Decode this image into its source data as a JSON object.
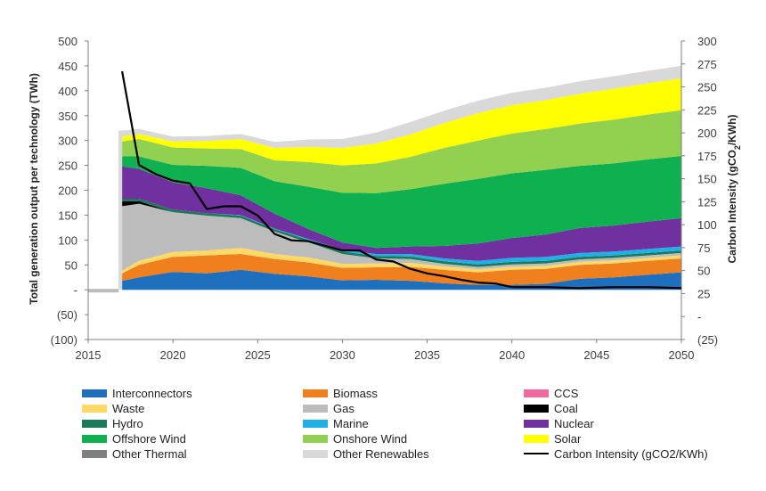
{
  "chart_data": {
    "type": "area",
    "title": "",
    "xlabel": "",
    "ylabel": "Total generation output per technology (TWh)",
    "y2label": "Carbon Intensity (gCO2/KWh)",
    "xlim": [
      2015,
      2050
    ],
    "ylim": [
      -100,
      500
    ],
    "y2lim": [
      -25,
      300
    ],
    "x_ticks": [
      "2015",
      "2020",
      "2025",
      "2030",
      "2035",
      "2040",
      "2045",
      "2050"
    ],
    "y_ticks": [
      "500",
      "450",
      "400",
      "350",
      "300",
      "250",
      "200",
      "150",
      "100",
      "50",
      "-",
      "(50)",
      "(100)"
    ],
    "y2_ticks": [
      "300",
      "275",
      "250",
      "225",
      "200",
      "175",
      "150",
      "125",
      "100",
      "75",
      "50",
      "25",
      "-",
      "(25)"
    ],
    "x": [
      2017,
      2018,
      2020,
      2022,
      2024,
      2026,
      2028,
      2030,
      2032,
      2034,
      2036,
      2038,
      2040,
      2042,
      2044,
      2046,
      2048,
      2050
    ],
    "series": [
      {
        "name": "Interconnectors",
        "color": "#1f6fbf",
        "values": [
          18,
          25,
          36,
          33,
          40,
          32,
          27,
          19,
          20,
          18,
          13,
          10,
          10,
          12,
          22,
          25,
          30,
          35
        ]
      },
      {
        "name": "Biomass",
        "color": "#f07f1e",
        "values": [
          15,
          25,
          30,
          36,
          32,
          30,
          28,
          25,
          25,
          28,
          27,
          25,
          30,
          30,
          28,
          28,
          28,
          28
        ]
      },
      {
        "name": "CCS",
        "color": "#f06aa0",
        "values": [
          0,
          0,
          0,
          0,
          0,
          0,
          0,
          0,
          0,
          0,
          0,
          0,
          0,
          0,
          0,
          0,
          0,
          0
        ]
      },
      {
        "name": "Waste",
        "color": "#ffd966",
        "values": [
          5,
          8,
          10,
          10,
          12,
          10,
          10,
          8,
          8,
          8,
          7,
          6,
          6,
          6,
          6,
          6,
          6,
          6
        ]
      },
      {
        "name": "Gas",
        "color": "#bcbcbc",
        "values": [
          130,
          115,
          80,
          70,
          60,
          45,
          30,
          20,
          10,
          8,
          5,
          5,
          5,
          5,
          5,
          5,
          5,
          5
        ]
      },
      {
        "name": "Coal",
        "color": "#000000",
        "values": [
          10,
          5,
          0,
          0,
          0,
          0,
          0,
          0,
          0,
          0,
          0,
          0,
          0,
          0,
          0,
          0,
          0,
          0
        ]
      },
      {
        "name": "Hydro",
        "color": "#1a7a5a",
        "values": [
          5,
          5,
          5,
          5,
          5,
          5,
          5,
          5,
          5,
          5,
          5,
          5,
          5,
          5,
          5,
          5,
          5,
          5
        ]
      },
      {
        "name": "Marine",
        "color": "#1fb0e8",
        "values": [
          0,
          0,
          0,
          0,
          1,
          1,
          2,
          3,
          4,
          5,
          6,
          7,
          8,
          8,
          8,
          8,
          8,
          8
        ]
      },
      {
        "name": "Nuclear",
        "color": "#7030a0",
        "values": [
          65,
          60,
          55,
          50,
          40,
          30,
          20,
          15,
          12,
          15,
          25,
          35,
          40,
          45,
          50,
          52,
          55,
          57
        ]
      },
      {
        "name": "Offshore Wind",
        "color": "#0fb050",
        "values": [
          20,
          25,
          35,
          45,
          55,
          65,
          85,
          100,
          110,
          115,
          125,
          130,
          130,
          130,
          125,
          125,
          125,
          125
        ]
      },
      {
        "name": "Onshore Wind",
        "color": "#92d050",
        "values": [
          30,
          35,
          35,
          35,
          38,
          42,
          50,
          55,
          60,
          65,
          72,
          77,
          80,
          82,
          85,
          88,
          90,
          92
        ]
      },
      {
        "name": "Solar",
        "color": "#ffff00",
        "values": [
          10,
          10,
          12,
          15,
          20,
          25,
          30,
          35,
          40,
          45,
          50,
          55,
          57,
          58,
          60,
          62,
          63,
          64
        ]
      },
      {
        "name": "Other Thermal",
        "color": "#808080",
        "values": [
          0,
          0,
          0,
          0,
          0,
          0,
          0,
          0,
          0,
          0,
          0,
          0,
          0,
          0,
          0,
          0,
          0,
          0
        ]
      },
      {
        "name": "Other Renewables",
        "color": "#d9d9d9",
        "values": [
          12,
          10,
          10,
          10,
          10,
          12,
          15,
          18,
          22,
          25,
          25,
          25,
          25,
          25,
          25,
          25,
          25,
          25
        ]
      }
    ],
    "carbon_intensity": {
      "name": "Carbon Intensity (gCO2/KWh)",
      "color": "#000000",
      "x": [
        2017,
        2018,
        2019,
        2020,
        2021,
        2022,
        2023,
        2024,
        2025,
        2026,
        2027,
        2028,
        2029,
        2030,
        2031,
        2032,
        2033,
        2034,
        2035,
        2036,
        2037,
        2038,
        2039,
        2040,
        2042,
        2044,
        2046,
        2048,
        2050
      ],
      "values": [
        267,
        165,
        155,
        148,
        145,
        117,
        120,
        120,
        110,
        90,
        83,
        82,
        77,
        72,
        72,
        62,
        60,
        52,
        47,
        44,
        40,
        37,
        36,
        32,
        32,
        31,
        32,
        32,
        31
      ]
    },
    "legend_position": "bottom",
    "legend": [
      {
        "label": "Interconnectors",
        "color": "#1f6fbf",
        "kind": "swatch"
      },
      {
        "label": "Biomass",
        "color": "#f07f1e",
        "kind": "swatch"
      },
      {
        "label": "CCS",
        "color": "#f06aa0",
        "kind": "swatch"
      },
      {
        "label": "Waste",
        "color": "#ffd966",
        "kind": "swatch"
      },
      {
        "label": "Gas",
        "color": "#bcbcbc",
        "kind": "swatch"
      },
      {
        "label": "Coal",
        "color": "#000000",
        "kind": "swatch"
      },
      {
        "label": "Hydro",
        "color": "#1a7a5a",
        "kind": "swatch"
      },
      {
        "label": "Marine",
        "color": "#1fb0e8",
        "kind": "swatch"
      },
      {
        "label": "Nuclear",
        "color": "#7030a0",
        "kind": "swatch"
      },
      {
        "label": "Offshore Wind",
        "color": "#0fb050",
        "kind": "swatch"
      },
      {
        "label": "Onshore Wind",
        "color": "#92d050",
        "kind": "swatch"
      },
      {
        "label": "Solar",
        "color": "#ffff00",
        "kind": "swatch"
      },
      {
        "label": "Other Thermal",
        "color": "#808080",
        "kind": "swatch"
      },
      {
        "label": "Other Renewables",
        "color": "#d9d9d9",
        "kind": "swatch"
      },
      {
        "label": "Carbon Intensity (gCO2/KWh)",
        "color": "#000000",
        "kind": "line"
      }
    ]
  }
}
